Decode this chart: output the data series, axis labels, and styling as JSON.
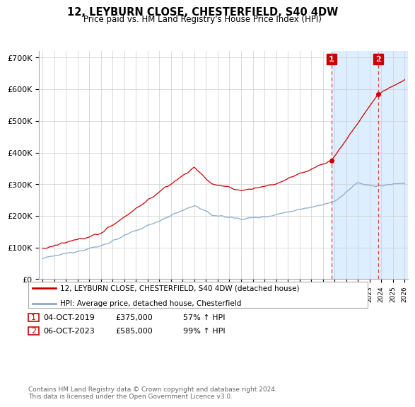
{
  "title": "12, LEYBURN CLOSE, CHESTERFIELD, S40 4DW",
  "subtitle": "Price paid vs. HM Land Registry's House Price Index (HPI)",
  "ylim": [
    0,
    720000
  ],
  "yticks": [
    0,
    100000,
    200000,
    300000,
    400000,
    500000,
    600000,
    700000
  ],
  "ytick_labels": [
    "£0",
    "£100K",
    "£200K",
    "£300K",
    "£400K",
    "£500K",
    "£600K",
    "£700K"
  ],
  "legend_line1": "12, LEYBURN CLOSE, CHESTERFIELD, S40 4DW (detached house)",
  "legend_line2": "HPI: Average price, detached house, Chesterfield",
  "annotation1_label": "1",
  "annotation1_date": "04-OCT-2019",
  "annotation1_price": "£375,000",
  "annotation1_hpi": "57% ↑ HPI",
  "annotation2_label": "2",
  "annotation2_date": "06-OCT-2023",
  "annotation2_price": "£585,000",
  "annotation2_hpi": "99% ↑ HPI",
  "footnote": "Contains HM Land Registry data © Crown copyright and database right 2024.\nThis data is licensed under the Open Government Licence v3.0.",
  "line_color_red": "#cc0000",
  "line_color_blue": "#88aacc",
  "shaded_color": "#ddeeff",
  "vline_color": "#dd4444",
  "annotation_box_color": "#cc0000",
  "sale1_year": 2019.75,
  "sale2_year": 2023.75,
  "sale1_price": 375000,
  "sale2_price": 585000
}
